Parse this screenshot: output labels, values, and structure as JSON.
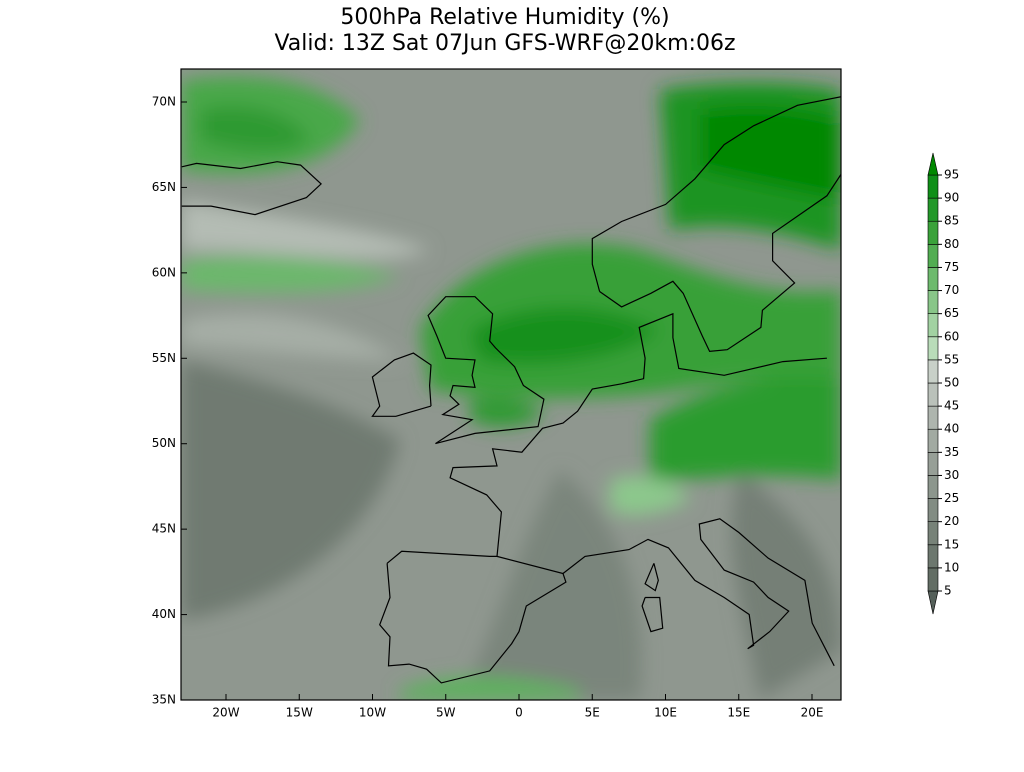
{
  "title": "500hPa Relative Humidity (%)",
  "subtitle": "Valid: 13Z Sat 07Jun GFS-WRF@20km:06z",
  "map": {
    "lat_labels": [
      "70N",
      "65N",
      "60N",
      "55N",
      "50N",
      "45N",
      "40N",
      "35N"
    ],
    "lon_labels": [
      "20W",
      "15W",
      "10W",
      "5W",
      "0",
      "5E",
      "10E",
      "15E",
      "20E"
    ]
  },
  "colorbar": {
    "levels": [
      5,
      10,
      15,
      20,
      25,
      30,
      35,
      40,
      45,
      50,
      55,
      60,
      65,
      70,
      75,
      80,
      85,
      90,
      95
    ],
    "colors": [
      "#55605a",
      "#626d64",
      "#6c776e",
      "#778278",
      "#828c83",
      "#8c968d",
      "#979f97",
      "#a2aaa2",
      "#aeb5ae",
      "#bac1ba",
      "#c8d0c8",
      "#b9dcb9",
      "#a2d2a2",
      "#88c688",
      "#6dba6d",
      "#52ad52",
      "#3aa23a",
      "#23982a",
      "#0f8f18",
      "#008800"
    ]
  }
}
